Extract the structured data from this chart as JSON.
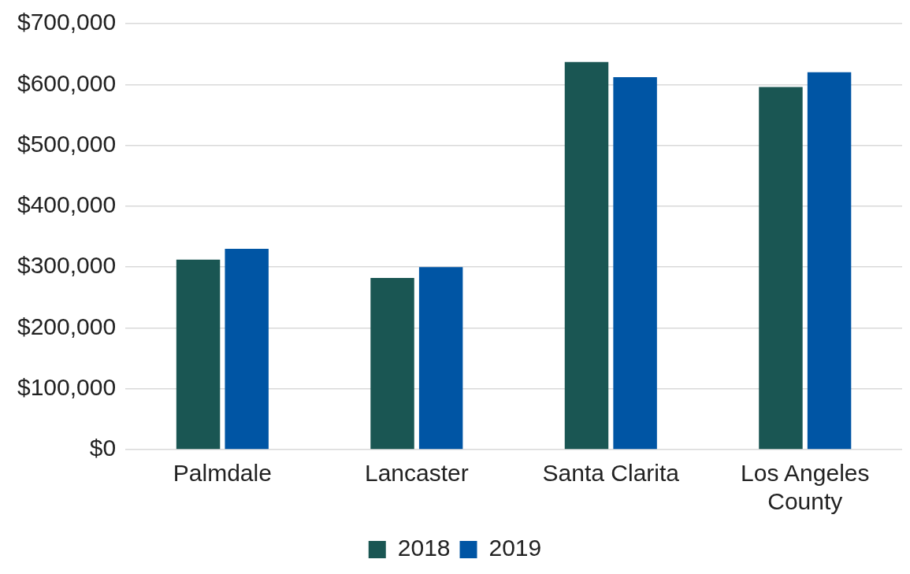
{
  "chart_data": {
    "type": "bar",
    "categories": [
      "Palmdale",
      "Lancaster",
      "Santa Clarita",
      "Los Angeles County"
    ],
    "series": [
      {
        "name": "2018",
        "color": "#1a5653",
        "values": [
          312000,
          282000,
          637000,
          596000
        ]
      },
      {
        "name": "2019",
        "color": "#0055a4",
        "values": [
          330000,
          300000,
          612000,
          620000
        ]
      }
    ],
    "ylim": [
      0,
      700000
    ],
    "yticks": [
      {
        "value": 0,
        "label": "$0"
      },
      {
        "value": 100000,
        "label": "$100,000"
      },
      {
        "value": 200000,
        "label": "$200,000"
      },
      {
        "value": 300000,
        "label": "$300,000"
      },
      {
        "value": 400000,
        "label": "$400,000"
      },
      {
        "value": 500000,
        "label": "$500,000"
      },
      {
        "value": 600000,
        "label": "$600,000"
      },
      {
        "value": 700000,
        "label": "$700,000"
      }
    ],
    "grid": "y",
    "legend": "bottom"
  }
}
